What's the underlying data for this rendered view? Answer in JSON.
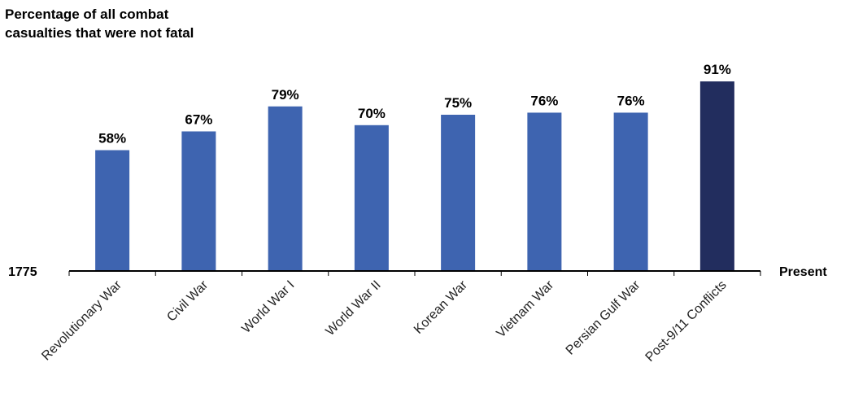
{
  "chart_data": {
    "type": "bar",
    "title": "Percentage of all combat casualties that were not fatal",
    "title_lines": [
      "Percentage of all combat",
      "casualties that were not fatal"
    ],
    "axis_start_label": "1775",
    "axis_end_label": "Present",
    "categories": [
      "Revolutionary War",
      "Civil War",
      "World War I",
      "World War II",
      "Korean War",
      "Vietnam War",
      "Persian Gulf War",
      "Post-9/11 Conflicts"
    ],
    "values": [
      58,
      67,
      79,
      70,
      75,
      76,
      76,
      91
    ],
    "value_labels": [
      "58%",
      "67%",
      "79%",
      "70%",
      "75%",
      "76%",
      "76%",
      "91%"
    ],
    "ylim": [
      0,
      100
    ],
    "grid": false,
    "legend": "none",
    "colors": {
      "bar": "#3e64b0",
      "highlight": "#222d5e",
      "highlight_index": 7,
      "axis": "#000000"
    }
  }
}
